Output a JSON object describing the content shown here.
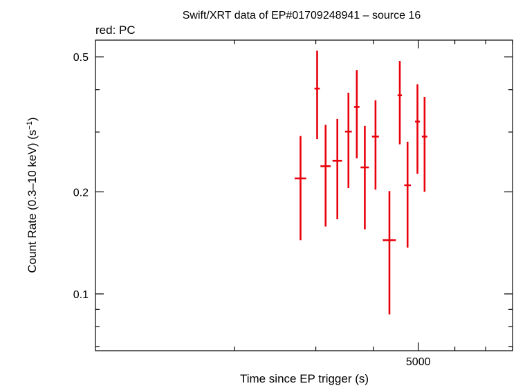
{
  "chart_data": {
    "type": "scatter",
    "title": "Swift/XRT data of EP#01709248941 – source 16",
    "subtitle": "red: PC",
    "xlabel": "Time since EP trigger (s)",
    "ylabel_main": "Count Rate (0.3–10 keV) (s",
    "ylabel_sup": "−1",
    "ylabel_end": ")",
    "x_scale": "log",
    "y_scale": "log",
    "xlim": [
      1000,
      8000
    ],
    "ylim": [
      0.068,
      0.56
    ],
    "x_tick_labels": [
      {
        "value": 5000,
        "label": "5000"
      }
    ],
    "y_tick_labels": [
      {
        "value": 0.1,
        "label": "0.1"
      },
      {
        "value": 0.2,
        "label": "0.2"
      },
      {
        "value": 0.5,
        "label": "0.5"
      }
    ],
    "series": [
      {
        "color": "#e8000b",
        "points": [
          {
            "x": 2780,
            "y": 0.219,
            "xerr_lo": 80,
            "xerr_hi": 80,
            "y_lo": 0.144,
            "y_hi": 0.292
          },
          {
            "x": 3020,
            "y": 0.403,
            "xerr_lo": 40,
            "xerr_hi": 40,
            "y_lo": 0.286,
            "y_hi": 0.521
          },
          {
            "x": 3150,
            "y": 0.238,
            "xerr_lo": 80,
            "xerr_hi": 80,
            "y_lo": 0.158,
            "y_hi": 0.315
          },
          {
            "x": 3340,
            "y": 0.247,
            "xerr_lo": 80,
            "xerr_hi": 80,
            "y_lo": 0.166,
            "y_hi": 0.328
          },
          {
            "x": 3530,
            "y": 0.301,
            "xerr_lo": 60,
            "xerr_hi": 60,
            "y_lo": 0.205,
            "y_hi": 0.392
          },
          {
            "x": 3680,
            "y": 0.356,
            "xerr_lo": 50,
            "xerr_hi": 50,
            "y_lo": 0.251,
            "y_hi": 0.457
          },
          {
            "x": 3830,
            "y": 0.236,
            "xerr_lo": 80,
            "xerr_hi": 80,
            "y_lo": 0.155,
            "y_hi": 0.313
          },
          {
            "x": 4040,
            "y": 0.291,
            "xerr_lo": 70,
            "xerr_hi": 70,
            "y_lo": 0.203,
            "y_hi": 0.372
          },
          {
            "x": 4330,
            "y": 0.144,
            "xerr_lo": 140,
            "xerr_hi": 140,
            "y_lo": 0.087,
            "y_hi": 0.201
          },
          {
            "x": 4560,
            "y": 0.385,
            "xerr_lo": 50,
            "xerr_hi": 50,
            "y_lo": 0.276,
            "y_hi": 0.486
          },
          {
            "x": 4740,
            "y": 0.209,
            "xerr_lo": 80,
            "xerr_hi": 80,
            "y_lo": 0.137,
            "y_hi": 0.281
          },
          {
            "x": 4980,
            "y": 0.322,
            "xerr_lo": 60,
            "xerr_hi": 60,
            "y_lo": 0.226,
            "y_hi": 0.415
          },
          {
            "x": 5160,
            "y": 0.291,
            "xerr_lo": 70,
            "xerr_hi": 70,
            "y_lo": 0.2,
            "y_hi": 0.381
          }
        ]
      }
    ]
  }
}
